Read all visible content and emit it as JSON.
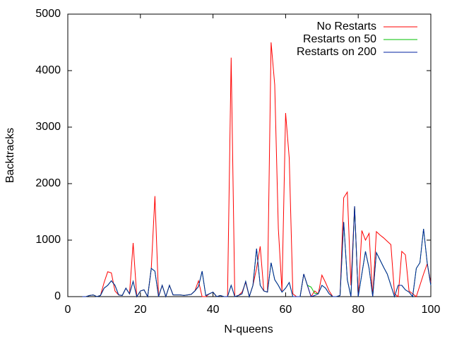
{
  "chart_data": {
    "type": "line",
    "x_label": "N-queens",
    "y_label": "Backtracks",
    "x": [
      4,
      5,
      6,
      7,
      8,
      9,
      10,
      11,
      12,
      13,
      14,
      15,
      16,
      17,
      18,
      19,
      20,
      21,
      22,
      23,
      24,
      25,
      26,
      27,
      28,
      29,
      30,
      31,
      32,
      33,
      34,
      35,
      36,
      37,
      38,
      39,
      40,
      41,
      42,
      43,
      44,
      45,
      46,
      47,
      48,
      49,
      50,
      51,
      52,
      53,
      54,
      55,
      56,
      57,
      58,
      59,
      60,
      61,
      62,
      63,
      64,
      65,
      66,
      67,
      68,
      69,
      70,
      71,
      72,
      73,
      74,
      75,
      76,
      77,
      78,
      79,
      80,
      81,
      82,
      83,
      84,
      85,
      86,
      87,
      88,
      89,
      90,
      91,
      92,
      93,
      94,
      95,
      96,
      97,
      98,
      99,
      100
    ],
    "series": [
      {
        "name": "No Restarts",
        "color": "#ff0000",
        "values": [
          0,
          0,
          20,
          30,
          0,
          20,
          250,
          440,
          420,
          100,
          30,
          20,
          150,
          50,
          950,
          0,
          100,
          120,
          0,
          500,
          1780,
          0,
          200,
          0,
          200,
          30,
          30,
          30,
          20,
          30,
          40,
          100,
          280,
          0,
          0,
          50,
          80,
          0,
          20,
          0,
          0,
          4230,
          0,
          20,
          80,
          250,
          0,
          200,
          500,
          890,
          100,
          80,
          4500,
          3750,
          1200,
          100,
          3250,
          2450,
          50,
          0,
          0,
          400,
          200,
          0,
          100,
          50,
          380,
          250,
          100,
          0,
          0,
          20,
          1750,
          1850,
          200,
          1600,
          0,
          1170,
          1000,
          1120,
          0,
          1150,
          1090,
          1040,
          980,
          920,
          50,
          0,
          800,
          740,
          100,
          50,
          0,
          200,
          400,
          580,
          250
        ]
      },
      {
        "name": "Restarts on 50",
        "color": "#00c000",
        "values": [
          0,
          0,
          20,
          30,
          0,
          20,
          150,
          200,
          280,
          200,
          30,
          20,
          150,
          50,
          270,
          0,
          100,
          120,
          0,
          500,
          450,
          0,
          200,
          0,
          200,
          30,
          30,
          30,
          20,
          30,
          40,
          100,
          180,
          450,
          20,
          50,
          80,
          0,
          20,
          0,
          0,
          200,
          0,
          20,
          50,
          270,
          0,
          200,
          850,
          200,
          100,
          80,
          600,
          300,
          200,
          80,
          150,
          250,
          0,
          0,
          0,
          400,
          200,
          170,
          60,
          50,
          200,
          150,
          50,
          0,
          0,
          20,
          1320,
          300,
          0,
          1600,
          0,
          400,
          800,
          500,
          0,
          780,
          650,
          520,
          400,
          200,
          0,
          200,
          200,
          120,
          80,
          0,
          500,
          600,
          1200,
          600,
          200
        ]
      },
      {
        "name": "Restarts on 200",
        "color": "#0020a0",
        "values": [
          0,
          0,
          20,
          30,
          0,
          20,
          150,
          200,
          280,
          200,
          30,
          20,
          150,
          50,
          270,
          0,
          100,
          120,
          0,
          500,
          450,
          0,
          200,
          0,
          200,
          30,
          30,
          30,
          20,
          30,
          40,
          100,
          180,
          450,
          20,
          50,
          80,
          0,
          20,
          0,
          0,
          200,
          0,
          20,
          50,
          270,
          0,
          200,
          850,
          200,
          100,
          80,
          600,
          300,
          200,
          80,
          150,
          250,
          0,
          0,
          0,
          400,
          200,
          0,
          20,
          50,
          200,
          150,
          50,
          0,
          0,
          20,
          1320,
          300,
          0,
          1600,
          0,
          400,
          800,
          500,
          0,
          780,
          650,
          520,
          400,
          200,
          0,
          200,
          200,
          120,
          80,
          0,
          500,
          600,
          1200,
          600,
          200
        ]
      }
    ],
    "xlim": [
      0,
      100
    ],
    "xticks": [
      0,
      20,
      40,
      60,
      80,
      100
    ],
    "ylim": [
      0,
      5000
    ],
    "yticks": [
      0,
      1000,
      2000,
      3000,
      4000,
      5000
    ],
    "grid": false,
    "legend": "top-right"
  }
}
